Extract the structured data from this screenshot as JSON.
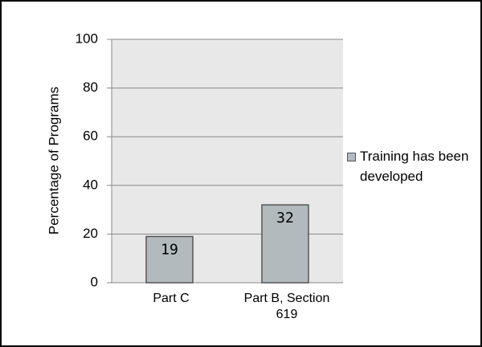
{
  "chart_data": {
    "type": "bar",
    "ylabel": "Percentage of Programs",
    "categories": [
      "Part C",
      "Part B, Section 619"
    ],
    "series": [
      {
        "name": "Training has been developed",
        "color": "#b2babd",
        "values": [
          19,
          32
        ]
      }
    ],
    "ylim": [
      0,
      100
    ],
    "yticks": [
      0,
      20,
      40,
      60,
      80,
      100
    ],
    "grid": true,
    "legend": "right"
  }
}
